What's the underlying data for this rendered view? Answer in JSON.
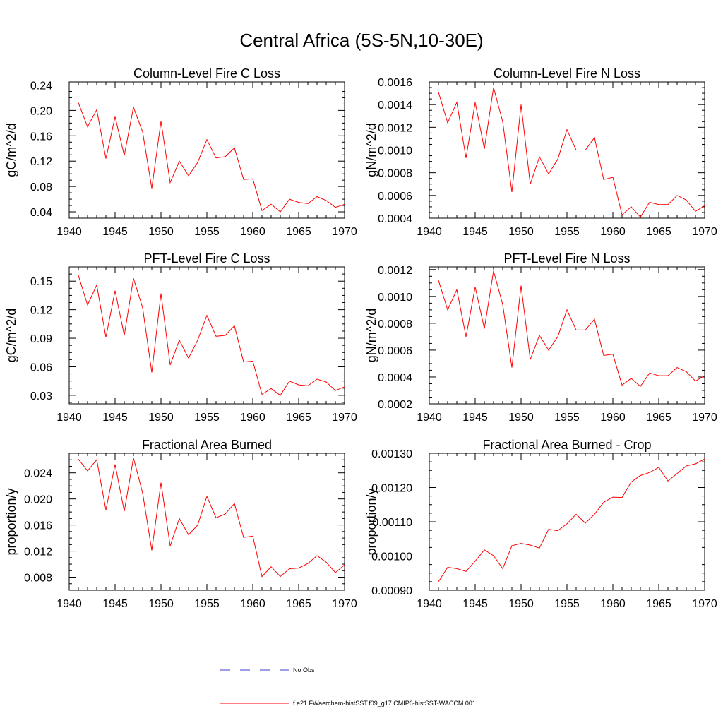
{
  "figure": {
    "title": "Central Africa (5S-5N,10-30E)"
  },
  "legend": {
    "entries": [
      {
        "label": "No Obs",
        "color": "#3b3bd0",
        "dash": "dashed"
      },
      {
        "label": "f.e21.FWaerchem-histSST.f09_g17.CMIP6-histSST-WACCM.001",
        "color": "#ff0000",
        "dash": "solid"
      }
    ]
  },
  "chart_data": [
    {
      "type": "line",
      "title": "Column-Level Fire C Loss",
      "xlabel": "",
      "ylabel": "gC/m^2/d",
      "xlim": [
        1940,
        1970
      ],
      "ylim": [
        0.03,
        0.245
      ],
      "xticks": [
        1940,
        1945,
        1950,
        1955,
        1960,
        1965,
        1970
      ],
      "yticks": [
        0.04,
        0.08,
        0.12,
        0.16,
        0.2,
        0.24
      ],
      "ytick_labels": [
        "0.04",
        "0.08",
        "0.12",
        "0.16",
        "0.20",
        "0.24"
      ],
      "color": "#ff0000",
      "x": [
        1941,
        1942,
        1943,
        1944,
        1945,
        1946,
        1947,
        1948,
        1949,
        1950,
        1951,
        1952,
        1953,
        1954,
        1955,
        1956,
        1957,
        1958,
        1959,
        1960,
        1961,
        1962,
        1963,
        1964,
        1965,
        1966,
        1967,
        1968,
        1969,
        1970
      ],
      "y": [
        0.212,
        0.174,
        0.201,
        0.124,
        0.19,
        0.129,
        0.205,
        0.166,
        0.077,
        0.183,
        0.086,
        0.12,
        0.097,
        0.118,
        0.154,
        0.125,
        0.127,
        0.141,
        0.091,
        0.092,
        0.042,
        0.052,
        0.04,
        0.06,
        0.055,
        0.053,
        0.064,
        0.058,
        0.047,
        0.052
      ]
    },
    {
      "type": "line",
      "title": "Column-Level Fire N Loss",
      "xlabel": "",
      "ylabel": "gN/m^2/d",
      "xlim": [
        1940,
        1970
      ],
      "ylim": [
        0.0004,
        0.0016
      ],
      "xticks": [
        1940,
        1945,
        1950,
        1955,
        1960,
        1965,
        1970
      ],
      "yticks": [
        0.0004,
        0.0006,
        0.0008,
        0.001,
        0.0012,
        0.0014,
        0.0016
      ],
      "ytick_labels": [
        "0.0004",
        "0.0006",
        "0.0008",
        "0.0010",
        "0.0012",
        "0.0014",
        "0.0016"
      ],
      "color": "#ff0000",
      "x": [
        1941,
        1942,
        1943,
        1944,
        1945,
        1946,
        1947,
        1948,
        1949,
        1950,
        1951,
        1952,
        1953,
        1954,
        1955,
        1956,
        1957,
        1958,
        1959,
        1960,
        1961,
        1962,
        1963,
        1964,
        1965,
        1966,
        1967,
        1968,
        1969,
        1970
      ],
      "y": [
        0.00151,
        0.00124,
        0.00142,
        0.00093,
        0.00142,
        0.00101,
        0.00155,
        0.00125,
        0.00063,
        0.0014,
        0.0007,
        0.00094,
        0.00079,
        0.00092,
        0.00118,
        0.001,
        0.001,
        0.00111,
        0.00074,
        0.00076,
        0.00043,
        0.0005,
        0.00041,
        0.00054,
        0.00052,
        0.00052,
        0.0006,
        0.00056,
        0.00046,
        0.00051
      ]
    },
    {
      "type": "line",
      "title": "PFT-Level Fire C Loss",
      "xlabel": "",
      "ylabel": "gC/m^2/d",
      "xlim": [
        1940,
        1970
      ],
      "ylim": [
        0.021,
        0.165
      ],
      "xticks": [
        1940,
        1945,
        1950,
        1955,
        1960,
        1965,
        1970
      ],
      "yticks": [
        0.03,
        0.06,
        0.09,
        0.12,
        0.15
      ],
      "ytick_labels": [
        "0.03",
        "0.06",
        "0.09",
        "0.12",
        "0.15"
      ],
      "color": "#ff0000",
      "x": [
        1941,
        1942,
        1943,
        1944,
        1945,
        1946,
        1947,
        1948,
        1949,
        1950,
        1951,
        1952,
        1953,
        1954,
        1955,
        1956,
        1957,
        1958,
        1959,
        1960,
        1961,
        1962,
        1963,
        1964,
        1965,
        1966,
        1967,
        1968,
        1969,
        1970
      ],
      "y": [
        0.156,
        0.125,
        0.146,
        0.091,
        0.14,
        0.093,
        0.153,
        0.122,
        0.054,
        0.137,
        0.062,
        0.088,
        0.069,
        0.088,
        0.114,
        0.092,
        0.093,
        0.103,
        0.065,
        0.066,
        0.031,
        0.037,
        0.03,
        0.045,
        0.041,
        0.04,
        0.047,
        0.044,
        0.035,
        0.039
      ]
    },
    {
      "type": "line",
      "title": "PFT-Level Fire N Loss",
      "xlabel": "",
      "ylabel": "gN/m^2/d",
      "xlim": [
        1940,
        1970
      ],
      "ylim": [
        0.0002,
        0.00122
      ],
      "xticks": [
        1940,
        1945,
        1950,
        1955,
        1960,
        1965,
        1970
      ],
      "yticks": [
        0.0002,
        0.0004,
        0.0006,
        0.0008,
        0.001,
        0.0012
      ],
      "ytick_labels": [
        "0.0002",
        "0.0004",
        "0.0006",
        "0.0008",
        "0.0010",
        "0.0012"
      ],
      "color": "#ff0000",
      "x": [
        1941,
        1942,
        1943,
        1944,
        1945,
        1946,
        1947,
        1948,
        1949,
        1950,
        1951,
        1952,
        1953,
        1954,
        1955,
        1956,
        1957,
        1958,
        1959,
        1960,
        1961,
        1962,
        1963,
        1964,
        1965,
        1966,
        1967,
        1968,
        1969,
        1970
      ],
      "y": [
        0.00112,
        0.0009,
        0.00105,
        0.0007,
        0.00107,
        0.00076,
        0.00119,
        0.00094,
        0.00047,
        0.00108,
        0.00053,
        0.00071,
        0.0006,
        0.0007,
        0.0009,
        0.00075,
        0.00075,
        0.00083,
        0.00056,
        0.00057,
        0.00034,
        0.00039,
        0.00033,
        0.00043,
        0.00041,
        0.00041,
        0.00047,
        0.00044,
        0.00037,
        0.00041
      ]
    },
    {
      "type": "line",
      "title": "Fractional Area Burned",
      "xlabel": "",
      "ylabel": "proportion/y",
      "xlim": [
        1940,
        1970
      ],
      "ylim": [
        0.006,
        0.027
      ],
      "xticks": [
        1940,
        1945,
        1950,
        1955,
        1960,
        1965,
        1970
      ],
      "yticks": [
        0.008,
        0.012,
        0.016,
        0.02,
        0.024
      ],
      "ytick_labels": [
        "0.008",
        "0.012",
        "0.016",
        "0.020",
        "0.024"
      ],
      "color": "#ff0000",
      "x": [
        1941,
        1942,
        1943,
        1944,
        1945,
        1946,
        1947,
        1948,
        1949,
        1950,
        1951,
        1952,
        1953,
        1954,
        1955,
        1956,
        1957,
        1958,
        1959,
        1960,
        1961,
        1962,
        1963,
        1964,
        1965,
        1966,
        1967,
        1968,
        1969,
        1970
      ],
      "y": [
        0.0261,
        0.0243,
        0.026,
        0.0183,
        0.0253,
        0.0181,
        0.0263,
        0.0209,
        0.0121,
        0.0225,
        0.0128,
        0.017,
        0.0145,
        0.016,
        0.0204,
        0.0171,
        0.0177,
        0.0193,
        0.0141,
        0.0143,
        0.0081,
        0.0096,
        0.0081,
        0.0093,
        0.0094,
        0.0101,
        0.0113,
        0.0103,
        0.0087,
        0.0099
      ]
    },
    {
      "type": "line",
      "title": "Fractional Area Burned - Crop",
      "xlabel": "",
      "ylabel": "proportion/y",
      "xlim": [
        1940,
        1970
      ],
      "ylim": [
        0.0009,
        0.0013
      ],
      "xticks": [
        1940,
        1945,
        1950,
        1955,
        1960,
        1965,
        1970
      ],
      "yticks": [
        0.0009,
        0.001,
        0.0011,
        0.0012,
        0.0013
      ],
      "ytick_labels": [
        "0.00090",
        "0.00100",
        "0.00110",
        "0.00120",
        "0.00130"
      ],
      "color": "#ff0000",
      "x": [
        1941,
        1942,
        1943,
        1944,
        1945,
        1946,
        1947,
        1948,
        1949,
        1950,
        1951,
        1952,
        1953,
        1954,
        1955,
        1956,
        1957,
        1958,
        1959,
        1960,
        1961,
        1962,
        1963,
        1964,
        1965,
        1966,
        1967,
        1968,
        1969,
        1970
      ],
      "y": [
        0.000925,
        0.000967,
        0.000963,
        0.000955,
        0.000985,
        0.001018,
        0.001001,
        0.000963,
        0.00103,
        0.001037,
        0.001032,
        0.001023,
        0.001078,
        0.001074,
        0.001094,
        0.001122,
        0.001096,
        0.001122,
        0.001157,
        0.001172,
        0.001171,
        0.001216,
        0.001235,
        0.001244,
        0.001259,
        0.001219,
        0.001241,
        0.001263,
        0.001269,
        0.001283
      ]
    }
  ]
}
